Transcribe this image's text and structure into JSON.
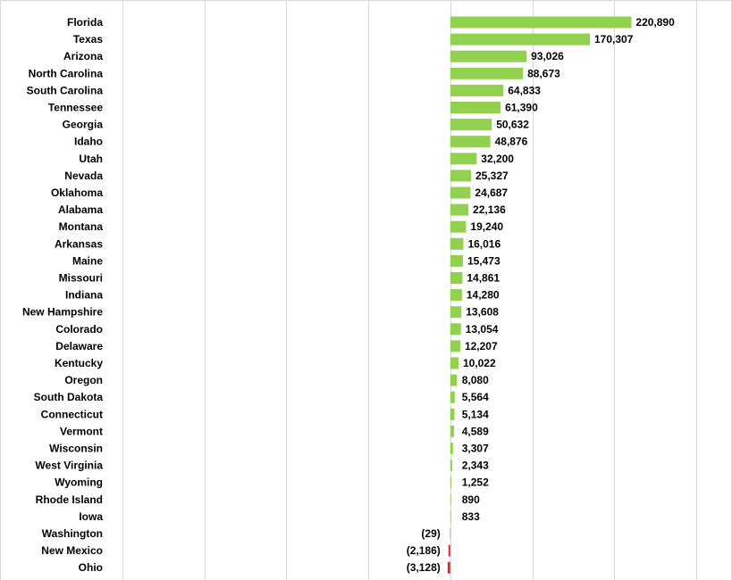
{
  "chart_data": {
    "type": "bar",
    "orientation": "horizontal",
    "categories": [
      "Florida",
      "Texas",
      "Arizona",
      "North Carolina",
      "South Carolina",
      "Tennessee",
      "Georgia",
      "Idaho",
      "Utah",
      "Nevada",
      "Oklahoma",
      "Alabama",
      "Montana",
      "Arkansas",
      "Maine",
      "Missouri",
      "Indiana",
      "New Hampshire",
      "Colorado",
      "Delaware",
      "Kentucky",
      "Oregon",
      "South Dakota",
      "Connecticut",
      "Vermont",
      "Wisconsin",
      "West Virginia",
      "Wyoming",
      "Rhode Island",
      "Iowa",
      "Washington",
      "New Mexico",
      "Ohio"
    ],
    "values": [
      220890,
      170307,
      93026,
      88673,
      64833,
      61390,
      50632,
      48876,
      32200,
      25327,
      24687,
      22136,
      19240,
      16016,
      15473,
      14861,
      14280,
      13608,
      13054,
      12207,
      10022,
      8080,
      5564,
      5134,
      4589,
      3307,
      2343,
      1252,
      890,
      833,
      -29,
      -2186,
      -3128
    ],
    "labels": [
      "220,890",
      "170,307",
      "93,026",
      "88,673",
      "64,833",
      "61,390",
      "50,632",
      "48,876",
      "32,200",
      "25,327",
      "24,687",
      "22,136",
      "19,240",
      "16,016",
      "15,473",
      "14,861",
      "14,280",
      "13,608",
      "13,054",
      "12,207",
      "10,022",
      "8,080",
      "5,564",
      "5,134",
      "4,589",
      "3,307",
      "2,343",
      "1,252",
      "890",
      "833",
      "(29)",
      "(2,186)",
      "(3,128)"
    ],
    "xlim": [
      -500000,
      300000
    ],
    "x_gridlines": [
      -400000,
      -300000,
      -200000,
      -100000,
      0,
      100000,
      200000,
      300000
    ],
    "grid": true,
    "legend": "none",
    "colors": {
      "positive": "#92d050",
      "negative": "#e0262b",
      "grid": "#d9d9d9"
    }
  }
}
